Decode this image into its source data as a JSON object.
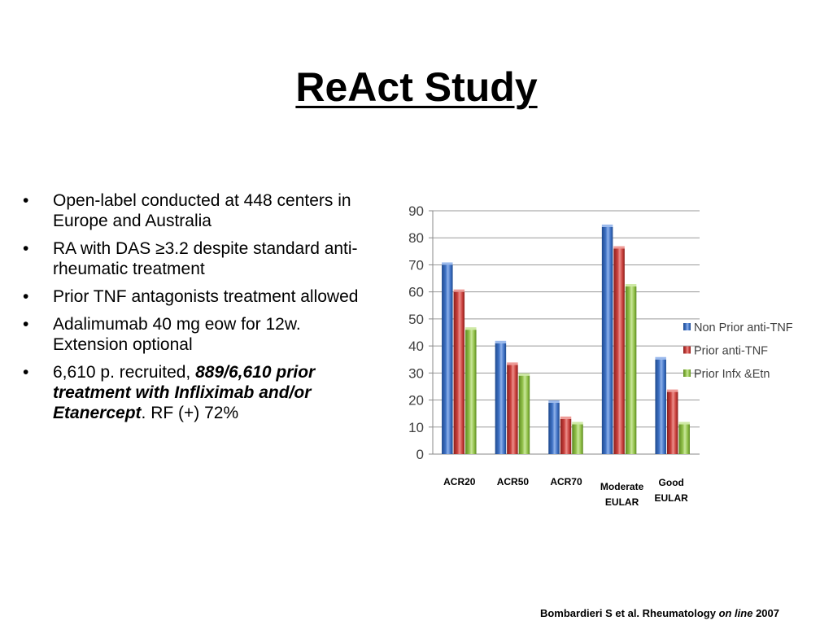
{
  "title": "ReAct Study",
  "bullets": [
    {
      "text": "Open-label conducted at 448 centers in Europe and Australia"
    },
    {
      "text": "RA with DAS ≥3.2 despite standard anti-rheumatic treatment"
    },
    {
      "text": "Prior TNF antagonists treatment allowed"
    },
    {
      "text": "Adalimumab 40 mg eow for 12w. Extension optional"
    },
    {
      "text_prefix": "6,610 p. recruited, ",
      "text_emphasis": "889/6,610 prior treatment with Infliximab and/or Etanercept",
      "text_suffix": ". RF (+) 72%"
    }
  ],
  "bullet_glyph": "•",
  "chart_data": {
    "type": "bar",
    "categories": [
      [
        "ACR20"
      ],
      [
        "ACR50"
      ],
      [
        "ACR70"
      ],
      [
        "Moderate",
        "EULAR"
      ],
      [
        "Good",
        "EULAR"
      ]
    ],
    "series": [
      {
        "name": "Non Prior anti-TNF",
        "values": [
          70,
          41,
          19,
          84,
          35
        ],
        "color": "#3f72c5",
        "dark": "#1f4a8e",
        "light": "#8fb1ea"
      },
      {
        "name": "Prior anti-TNF",
        "values": [
          60,
          33,
          13,
          76,
          23
        ],
        "color": "#c9403c",
        "dark": "#8a1f1c",
        "light": "#ec8f8b"
      },
      {
        "name": "Prior Infx &Etn",
        "values": [
          46,
          29,
          11,
          62,
          11
        ],
        "color": "#92c14a",
        "dark": "#5c8a21",
        "light": "#c9e79a"
      }
    ],
    "ylim": [
      0,
      90
    ],
    "yticks": [
      0,
      10,
      20,
      30,
      40,
      50,
      60,
      70,
      80,
      90
    ],
    "grid": true,
    "legend": "right"
  },
  "footer": {
    "prefix": "Bombardieri S et al. Rheumatology ",
    "italic": "on line",
    "suffix": " 2007"
  }
}
